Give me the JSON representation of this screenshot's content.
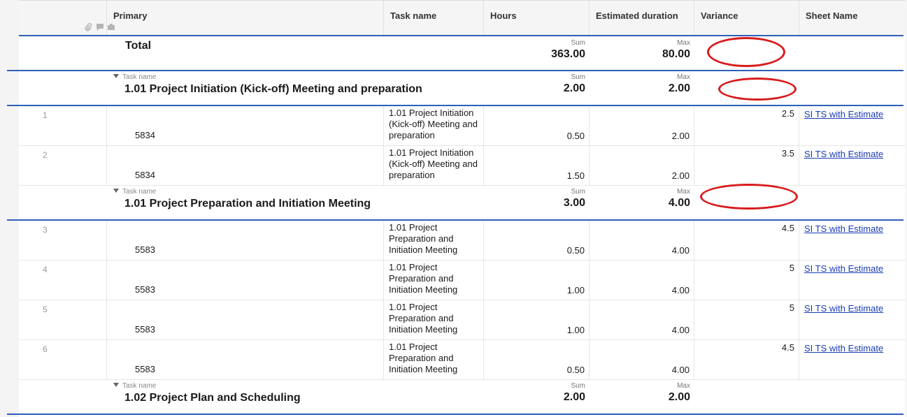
{
  "columns": {
    "primary": "Primary",
    "task_name": "Task name",
    "hours": "Hours",
    "estimated_duration": "Estimated duration",
    "variance": "Variance",
    "sheet_name": "Sheet Name"
  },
  "total": {
    "label": "Total",
    "hours_agg": "Sum",
    "hours_value": "363.00",
    "duration_agg": "Max",
    "duration_value": "80.00"
  },
  "groups": [
    {
      "field_label": "Task name",
      "title": "1.01 Project Initiation (Kick-off) Meeting and preparation",
      "hours_agg": "Sum",
      "hours_value": "2.00",
      "duration_agg": "Max",
      "duration_value": "2.00"
    },
    {
      "field_label": "Task name",
      "title": "1.01 Project Preparation and Initiation Meeting",
      "hours_agg": "Sum",
      "hours_value": "3.00",
      "duration_agg": "Max",
      "duration_value": "4.00"
    },
    {
      "field_label": "Task name",
      "title": "1.02 Project Plan and Scheduling",
      "hours_agg": "Sum",
      "hours_value": "2.00",
      "duration_agg": "Max",
      "duration_value": "2.00"
    }
  ],
  "rows": [
    {
      "num": "1",
      "primary": "5834",
      "task_lines": [
        "1.01 Project Initiation",
        "(Kick-off) Meeting and",
        "preparation"
      ],
      "hours": "0.50",
      "duration": "2.00",
      "variance": "2.5",
      "sheet": "SI TS with Estimate"
    },
    {
      "num": "2",
      "primary": "5834",
      "task_lines": [
        "1.01 Project Initiation",
        "(Kick-off) Meeting and",
        "preparation"
      ],
      "hours": "1.50",
      "duration": "2.00",
      "variance": "3.5",
      "sheet": "SI TS with Estimate"
    },
    {
      "num": "3",
      "primary": "5583",
      "task_lines": [
        "1.01 Project",
        "Preparation and",
        "Initiation Meeting"
      ],
      "hours": "0.50",
      "duration": "4.00",
      "variance": "4.5",
      "sheet": "SI TS with Estimate"
    },
    {
      "num": "4",
      "primary": "5583",
      "task_lines": [
        "1.01 Project",
        "Preparation and",
        "Initiation Meeting"
      ],
      "hours": "1.00",
      "duration": "4.00",
      "variance": "5",
      "sheet": "SI TS with Estimate"
    },
    {
      "num": "5",
      "primary": "5583",
      "task_lines": [
        "1.01 Project",
        "Preparation and",
        "Initiation Meeting"
      ],
      "hours": "1.00",
      "duration": "4.00",
      "variance": "5",
      "sheet": "SI TS with Estimate"
    },
    {
      "num": "6",
      "primary": "5583",
      "task_lines": [
        "1.01 Project",
        "Preparation and",
        "Initiation Meeting"
      ],
      "hours": "0.50",
      "duration": "4.00",
      "variance": "4.5",
      "sheet": "SI TS with Estimate"
    }
  ],
  "icons": [
    "attachment-icon",
    "comment-icon",
    "proofing-icon"
  ],
  "colors": {
    "group_border": "#2d5fb8",
    "annotation": "#d81c1c",
    "link": "#1a3db3"
  }
}
